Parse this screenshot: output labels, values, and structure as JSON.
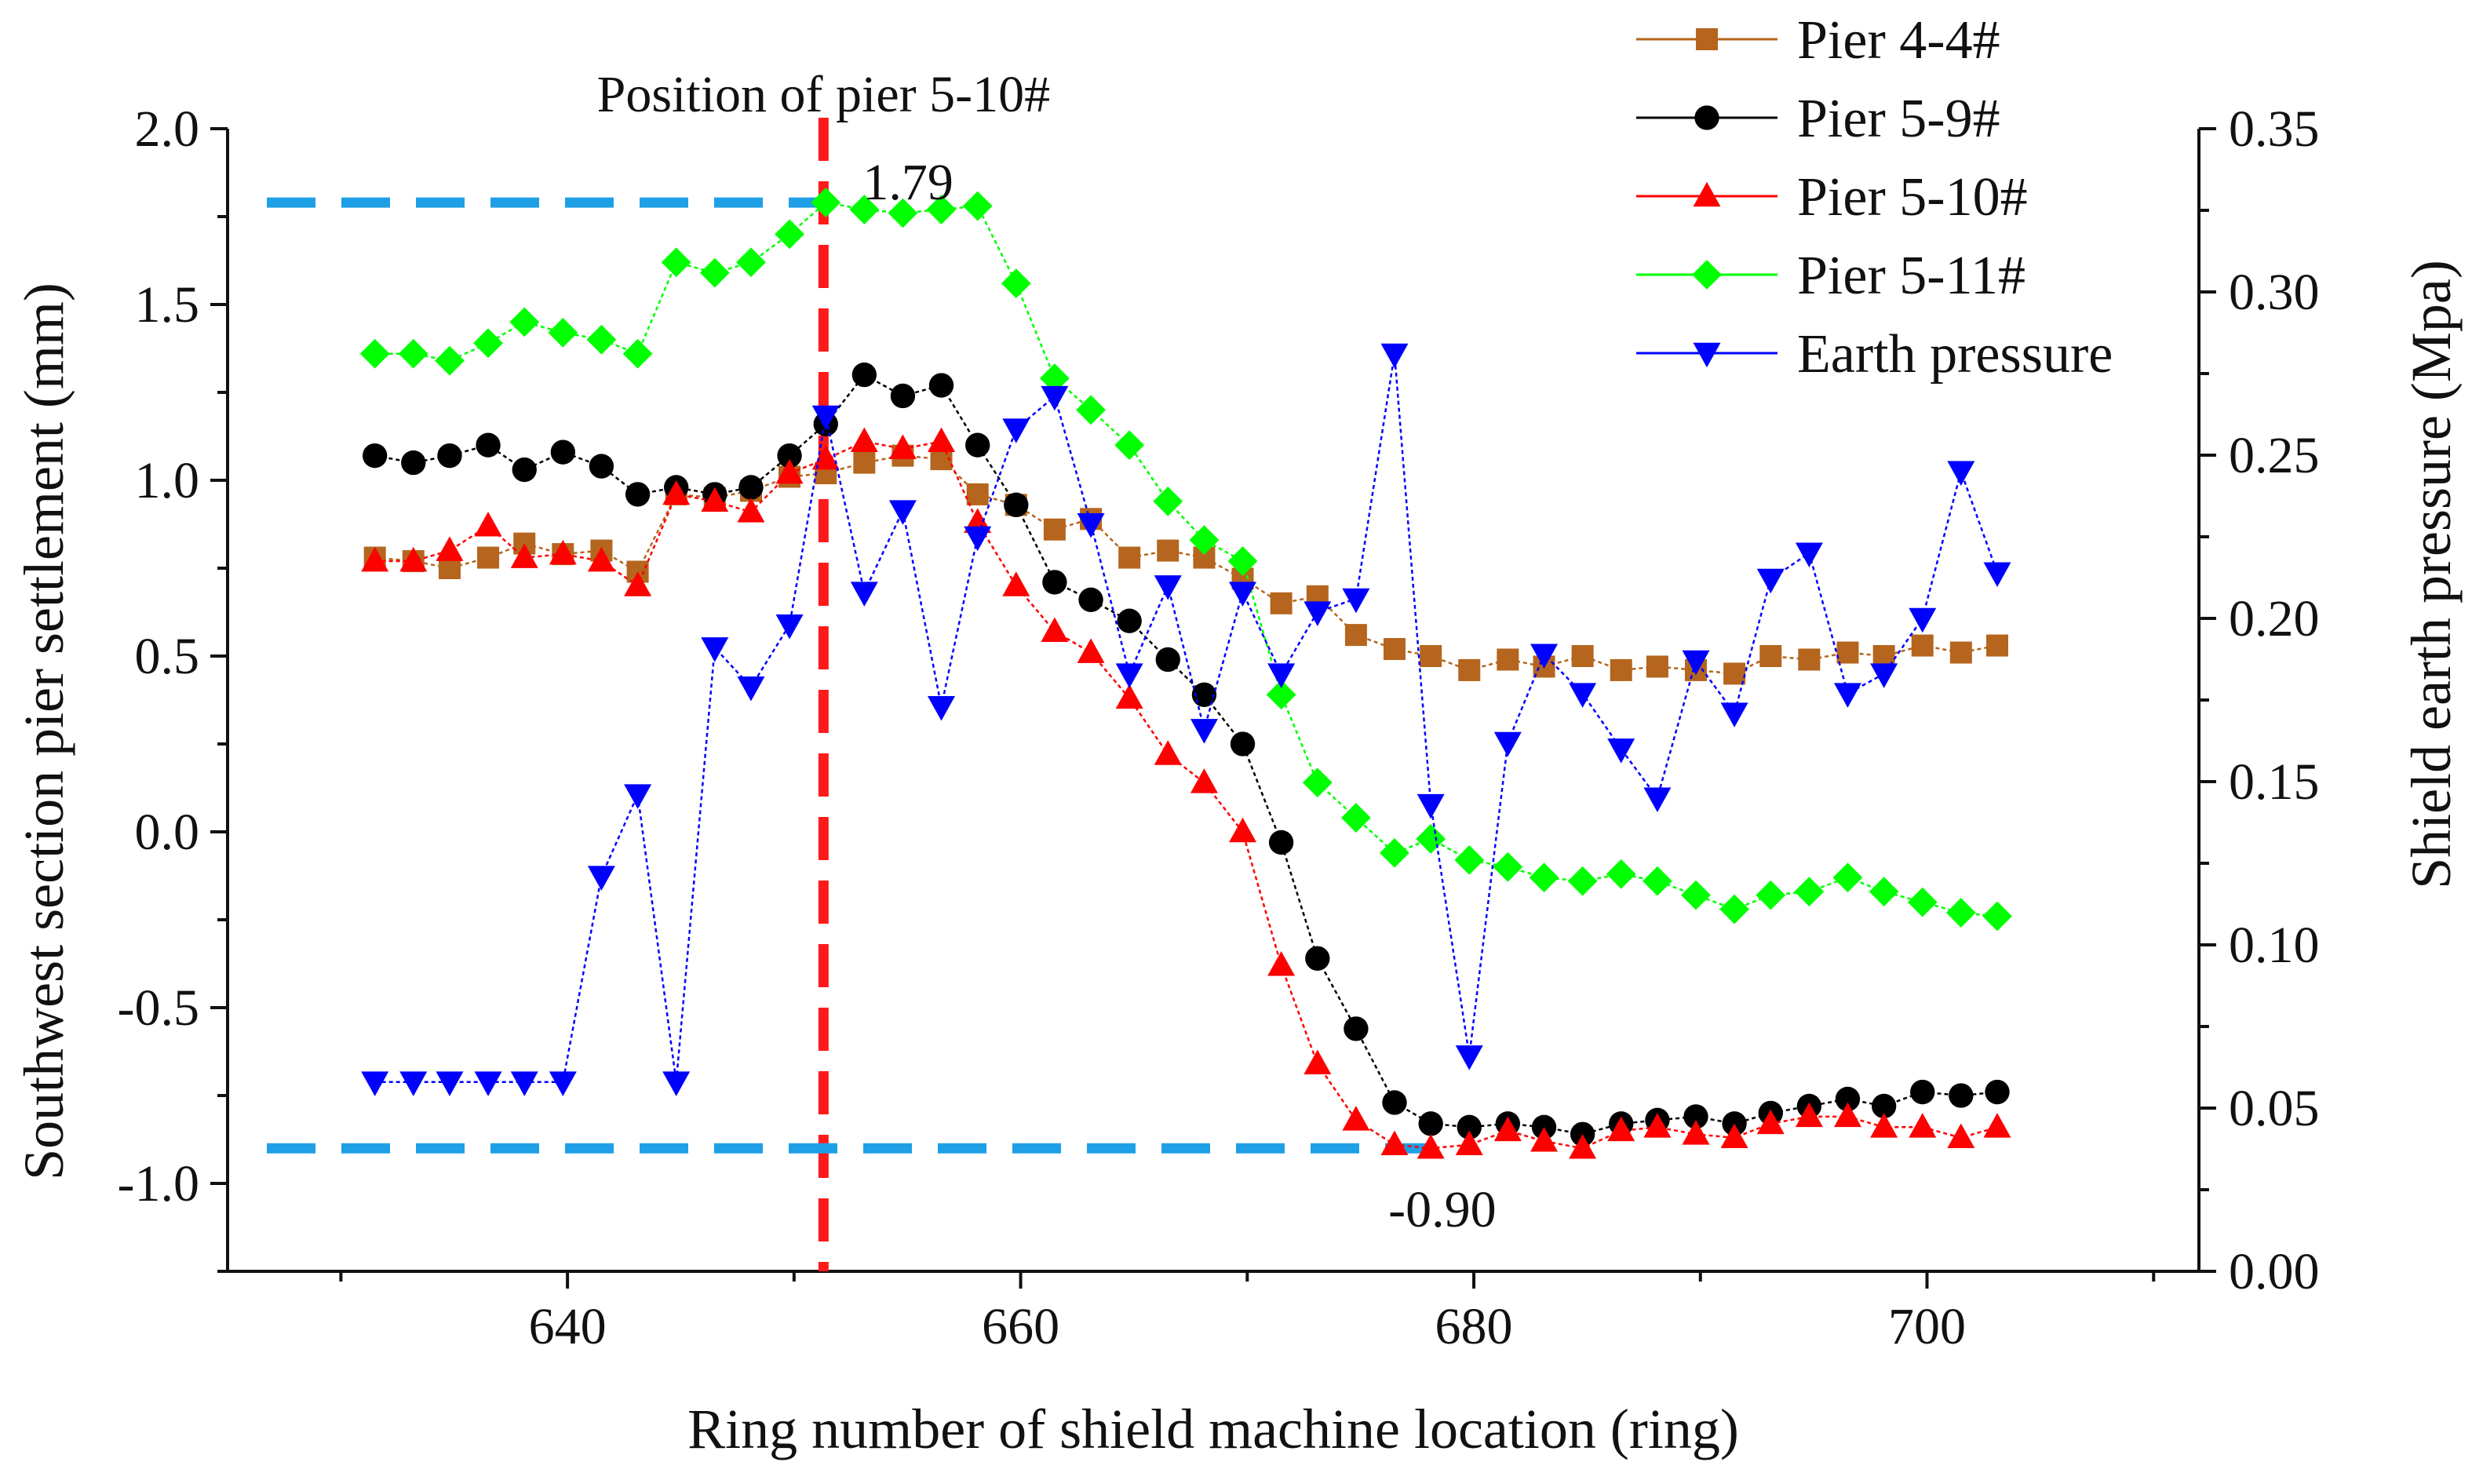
{
  "chart_data": {
    "type": "line",
    "title": "",
    "xlabel": "Ring number of shield machine location (ring)",
    "ylabel_left": "Southwest section pier settlement (mm)",
    "ylabel_right": "Shield earth pressure (Mpa)",
    "xlim": [
      625,
      712
    ],
    "ylim_left": [
      -1.25,
      2.0
    ],
    "ylim_right": [
      0.0,
      0.35
    ],
    "x_ticks": [
      640,
      660,
      680,
      700
    ],
    "x_tick_labels": [
      "640",
      "660",
      "680",
      "700"
    ],
    "y_left_ticks": [
      2.0,
      1.5,
      1.0,
      0.5,
      0.0,
      -0.5,
      -1.0
    ],
    "y_left_tick_labels": [
      "2.0",
      "1.5",
      "1.0",
      "0.5",
      "0.0",
      "-0.5",
      "-1.0"
    ],
    "y_right_ticks": [
      0.35,
      0.3,
      0.25,
      0.2,
      0.15,
      0.1,
      0.05,
      0.0
    ],
    "y_right_tick_labels": [
      "0.35",
      "0.30",
      "0.25",
      "0.20",
      "0.15",
      "0.10",
      "0.05",
      "0.00"
    ],
    "legend_position": "top-right",
    "series": [
      {
        "name": "Pier 4-4#",
        "axis": "left",
        "color": "#b5651d",
        "marker": "square",
        "x": [
          631.5,
          633.2,
          634.8,
          636.5,
          638.1,
          639.8,
          641.5,
          643.1,
          644.8,
          646.5,
          648.1,
          649.8,
          651.4,
          653.1,
          654.8,
          656.5,
          658.1,
          659.8,
          661.5,
          663.1,
          664.8,
          666.5,
          668.1,
          669.8,
          671.5,
          673.1,
          674.8,
          676.5,
          678.1,
          679.8,
          681.5,
          683.1,
          684.8,
          686.5,
          688.1,
          689.8,
          691.5,
          693.1,
          694.8,
          696.5,
          698.1,
          699.8,
          701.5,
          703.1
        ],
        "values": [
          0.78,
          0.77,
          0.75,
          0.78,
          0.82,
          0.79,
          0.8,
          0.74,
          0.96,
          0.95,
          0.97,
          1.01,
          1.02,
          1.05,
          1.07,
          1.06,
          0.96,
          0.93,
          0.86,
          0.89,
          0.78,
          0.8,
          0.78,
          0.72,
          0.65,
          0.67,
          0.56,
          0.52,
          0.5,
          0.46,
          0.49,
          0.47,
          0.5,
          0.46,
          0.47,
          0.46,
          0.45,
          0.5,
          0.49,
          0.51,
          0.5,
          0.53,
          0.51,
          0.53
        ]
      },
      {
        "name": "Pier 5-9#",
        "axis": "left",
        "color": "#000000",
        "marker": "circle",
        "x": [
          631.5,
          633.2,
          634.8,
          636.5,
          638.1,
          639.8,
          641.5,
          643.1,
          644.8,
          646.5,
          648.1,
          649.8,
          651.4,
          653.1,
          654.8,
          656.5,
          658.1,
          659.8,
          661.5,
          663.1,
          664.8,
          666.5,
          668.1,
          669.8,
          671.5,
          673.1,
          674.8,
          676.5,
          678.1,
          679.8,
          681.5,
          683.1,
          684.8,
          686.5,
          688.1,
          689.8,
          691.5,
          693.1,
          694.8,
          696.5,
          698.1,
          699.8,
          701.5,
          703.1
        ],
        "values": [
          1.07,
          1.05,
          1.07,
          1.1,
          1.03,
          1.08,
          1.04,
          0.96,
          0.98,
          0.96,
          0.98,
          1.07,
          1.16,
          1.3,
          1.24,
          1.27,
          1.1,
          0.93,
          0.71,
          0.66,
          0.6,
          0.49,
          0.39,
          0.25,
          -0.03,
          -0.36,
          -0.56,
          -0.77,
          -0.83,
          -0.84,
          -0.83,
          -0.84,
          -0.86,
          -0.83,
          -0.82,
          -0.81,
          -0.83,
          -0.8,
          -0.78,
          -0.76,
          -0.78,
          -0.74,
          -0.75,
          -0.74
        ]
      },
      {
        "name": "Pier 5-10#",
        "axis": "left",
        "color": "#ff0000",
        "marker": "triangle-up",
        "x": [
          631.5,
          633.2,
          634.8,
          636.5,
          638.1,
          639.8,
          641.5,
          643.1,
          644.8,
          646.5,
          648.1,
          649.8,
          651.4,
          653.1,
          654.8,
          656.5,
          658.1,
          659.8,
          661.5,
          663.1,
          664.8,
          666.5,
          668.1,
          669.8,
          671.5,
          673.1,
          674.8,
          676.5,
          678.1,
          679.8,
          681.5,
          683.1,
          684.8,
          686.5,
          688.1,
          689.8,
          691.5,
          693.1,
          694.8,
          696.5,
          698.1,
          699.8,
          701.5,
          703.1
        ],
        "values": [
          0.77,
          0.77,
          0.8,
          0.87,
          0.78,
          0.79,
          0.77,
          0.7,
          0.96,
          0.94,
          0.91,
          1.02,
          1.06,
          1.11,
          1.09,
          1.11,
          0.88,
          0.7,
          0.57,
          0.51,
          0.38,
          0.22,
          0.14,
          0.0,
          -0.38,
          -0.66,
          -0.82,
          -0.89,
          -0.9,
          -0.89,
          -0.85,
          -0.88,
          -0.9,
          -0.85,
          -0.84,
          -0.86,
          -0.87,
          -0.83,
          -0.81,
          -0.81,
          -0.84,
          -0.84,
          -0.87,
          -0.84
        ]
      },
      {
        "name": "Pier 5-11#",
        "axis": "left",
        "color": "#00ff00",
        "marker": "diamond",
        "x": [
          631.5,
          633.2,
          634.8,
          636.5,
          638.1,
          639.8,
          641.5,
          643.1,
          644.8,
          646.5,
          648.1,
          649.8,
          651.4,
          653.1,
          654.8,
          656.5,
          658.1,
          659.8,
          661.5,
          663.1,
          664.8,
          666.5,
          668.1,
          669.8,
          671.5,
          673.1,
          674.8,
          676.5,
          678.1,
          679.8,
          681.5,
          683.1,
          684.8,
          686.5,
          688.1,
          689.8,
          691.5,
          693.1,
          694.8,
          696.5,
          698.1,
          699.8,
          701.5,
          703.1
        ],
        "values": [
          1.36,
          1.36,
          1.34,
          1.39,
          1.45,
          1.42,
          1.4,
          1.36,
          1.62,
          1.59,
          1.62,
          1.7,
          1.79,
          1.77,
          1.76,
          1.77,
          1.78,
          1.56,
          1.29,
          1.2,
          1.1,
          0.94,
          0.83,
          0.77,
          0.39,
          0.14,
          0.04,
          -0.06,
          -0.02,
          -0.08,
          -0.1,
          -0.13,
          -0.14,
          -0.12,
          -0.14,
          -0.18,
          -0.22,
          -0.18,
          -0.17,
          -0.13,
          -0.17,
          -0.2,
          -0.23,
          -0.24
        ]
      },
      {
        "name": "Earth pressure",
        "axis": "right",
        "color": "#0000ff",
        "marker": "triangle-down",
        "x": [
          631.5,
          633.2,
          634.8,
          636.5,
          638.1,
          639.8,
          641.5,
          643.1,
          644.8,
          646.5,
          648.1,
          649.8,
          651.4,
          653.1,
          654.8,
          656.5,
          658.1,
          659.8,
          661.5,
          663.1,
          664.8,
          666.5,
          668.1,
          669.8,
          671.5,
          673.1,
          674.8,
          676.5,
          678.1,
          679.8,
          681.5,
          683.1,
          684.8,
          686.5,
          688.1,
          689.8,
          691.5,
          693.1,
          694.8,
          696.5,
          698.1,
          699.8,
          701.5,
          703.1
        ],
        "values": [
          0.058,
          0.058,
          0.058,
          0.058,
          0.058,
          0.058,
          0.121,
          0.146,
          0.058,
          0.191,
          0.179,
          0.198,
          0.262,
          0.208,
          0.233,
          0.173,
          0.225,
          0.258,
          0.268,
          0.229,
          0.183,
          0.21,
          0.166,
          0.208,
          0.183,
          0.202,
          0.206,
          0.281,
          0.143,
          0.066,
          0.162,
          0.189,
          0.177,
          0.16,
          0.145,
          0.187,
          0.171,
          0.212,
          0.22,
          0.177,
          0.183,
          0.2,
          0.245,
          0.214
        ]
      }
    ],
    "annotations": {
      "vertical_line": {
        "x": 651.3,
        "label": "Position of pier 5-10#",
        "color": "#ff1a1a"
      },
      "max_value": {
        "value": 1.79,
        "label": "1.79",
        "color": "#1f9fe6"
      },
      "min_value": {
        "value": -0.9,
        "label": "-0.90",
        "color": "#1f9fe6"
      }
    }
  }
}
